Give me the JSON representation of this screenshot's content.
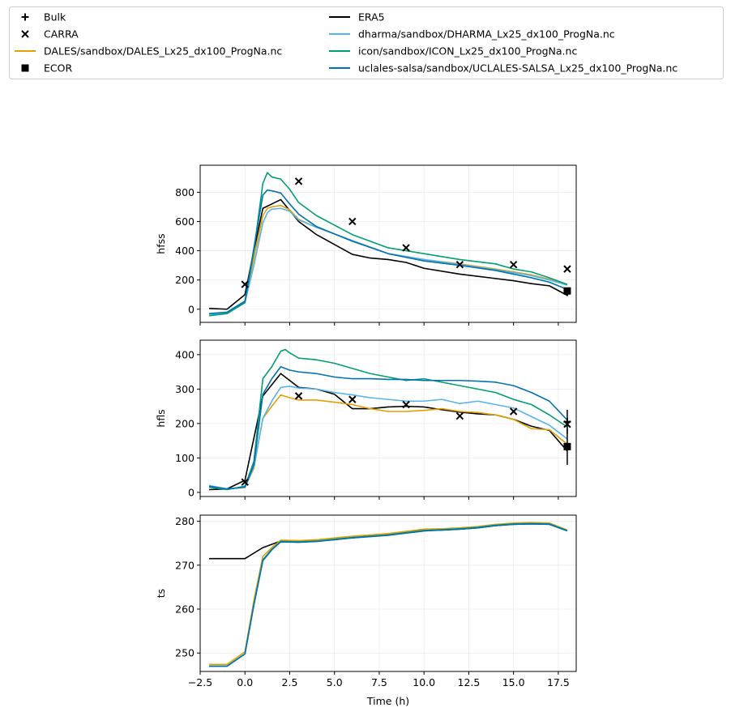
{
  "chart_data": {
    "type": "line",
    "xlabel": "Time (h)",
    "x_ticks": [
      -2.5,
      0.0,
      2.5,
      5.0,
      7.5,
      10.0,
      12.5,
      15.0,
      17.5
    ],
    "x_tick_labels": [
      "−2.5",
      "0.0",
      "2.5",
      "5.0",
      "7.5",
      "10.0",
      "12.5",
      "15.0",
      "17.5"
    ],
    "xlim": [
      -2.5,
      18.5
    ],
    "grid": true,
    "legend_placement": "top, outside axes, two columns",
    "legend": [
      {
        "label": "Bulk",
        "kind": "marker",
        "marker": "plus",
        "color": "#000000"
      },
      {
        "label": "CARRA",
        "kind": "marker",
        "marker": "x",
        "color": "#000000"
      },
      {
        "label": "DALES/sandbox/DALES_Lx25_dx100_ProgNa.nc",
        "kind": "line",
        "color": "#E69F00"
      },
      {
        "label": "ECOR",
        "kind": "marker",
        "marker": "square",
        "color": "#000000"
      },
      {
        "label": "ERA5",
        "kind": "line",
        "color": "#000000"
      },
      {
        "label": "dharma/sandbox/DHARMA_Lx25_dx100_ProgNa.nc",
        "kind": "line",
        "color": "#56B4E9"
      },
      {
        "label": "icon/sandbox/ICON_Lx25_dx100_ProgNa.nc",
        "kind": "line",
        "color": "#009E73"
      },
      {
        "label": "uclales-salsa/sandbox/UCLALES-SALSA_Lx25_dx100_ProgNa.nc",
        "kind": "line",
        "color": "#0072B2"
      }
    ],
    "panels": [
      {
        "ylabel": "hfss",
        "ylim": [
          -90,
          985
        ],
        "y_ticks": [
          0,
          200,
          400,
          600,
          800
        ],
        "y_tick_labels": [
          "0",
          "200",
          "400",
          "600",
          "800"
        ],
        "series": [
          {
            "name": "ERA5",
            "color": "#000000",
            "x": [
              -2,
              -1,
              0,
              0.5,
              1,
              2,
              3,
              4,
              6,
              7,
              8,
              9,
              10,
              12,
              14,
              15,
              16,
              17,
              18
            ],
            "y": [
              5,
              0,
              100,
              400,
              690,
              750,
              600,
              510,
              375,
              350,
              340,
              320,
              280,
              240,
              210,
              195,
              175,
              160,
              95
            ]
          },
          {
            "name": "DALES/sandbox/DALES_Lx25_dx100_ProgNa.nc",
            "color": "#E69F00",
            "x": [
              -2,
              -1,
              0,
              0.5,
              1,
              1.25,
              1.5,
              2,
              2.5,
              3,
              4,
              6,
              8,
              10,
              12,
              14,
              16,
              17,
              18
            ],
            "y": [
              -35,
              -25,
              50,
              350,
              640,
              690,
              700,
              710,
              680,
              615,
              560,
              470,
              380,
              340,
              310,
              275,
              235,
              205,
              165
            ]
          },
          {
            "name": "dharma/sandbox/DHARMA_Lx25_dx100_ProgNa.nc",
            "color": "#56B4E9",
            "x": [
              -2,
              -1,
              0,
              0.5,
              1,
              1.25,
              1.5,
              2,
              2.5,
              3,
              4,
              6,
              8,
              10,
              12,
              14,
              16,
              17,
              18
            ],
            "y": [
              -35,
              -25,
              45,
              300,
              590,
              660,
              685,
              690,
              670,
              610,
              560,
              470,
              380,
              340,
              305,
              270,
              230,
              200,
              165
            ]
          },
          {
            "name": "icon/sandbox/ICON_Lx25_dx100_ProgNa.nc",
            "color": "#009E73",
            "x": [
              -2,
              -1,
              0,
              0.5,
              1,
              1.25,
              1.5,
              2,
              2.5,
              3,
              4,
              6,
              8,
              10,
              12,
              14,
              15,
              16,
              17,
              18
            ],
            "y": [
              -45,
              -30,
              45,
              400,
              860,
              935,
              905,
              890,
              820,
              730,
              640,
              510,
              420,
              380,
              340,
              310,
              275,
              255,
              215,
              170
            ]
          },
          {
            "name": "uclales-salsa/sandbox/UCLALES-SALSA_Lx25_dx100_ProgNa.nc",
            "color": "#0072B2",
            "x": [
              -2,
              -1,
              0,
              0.5,
              1,
              1.25,
              1.5,
              2,
              2.5,
              3,
              4,
              6,
              8,
              10,
              12,
              14,
              16,
              17,
              18
            ],
            "y": [
              -30,
              -20,
              55,
              420,
              780,
              815,
              810,
              795,
              720,
              650,
              565,
              465,
              380,
              330,
              300,
              265,
              215,
              185,
              135
            ]
          }
        ],
        "CARRA": {
          "x": [
            0,
            3,
            6,
            9,
            12,
            15,
            18
          ],
          "y": [
            170,
            875,
            600,
            420,
            305,
            305,
            275
          ]
        },
        "Bulk": {
          "x": 18,
          "y": 115,
          "err_low": 100,
          "err_high": 130
        },
        "ECOR": {
          "x": 18,
          "y": 125
        }
      },
      {
        "ylabel": "hfls",
        "ylim": [
          -12,
          442
        ],
        "y_ticks": [
          0,
          100,
          200,
          300,
          400
        ],
        "y_tick_labels": [
          "0",
          "100",
          "200",
          "300",
          "400"
        ],
        "series": [
          {
            "name": "ERA5",
            "color": "#000000",
            "x": [
              -2,
              -1,
              0,
              1,
              2,
              3,
              4,
              5,
              6,
              7,
              8,
              9,
              10,
              11,
              12,
              13,
              14,
              15,
              16,
              17,
              18
            ],
            "y": [
              8,
              10,
              35,
              280,
              345,
              305,
              300,
              285,
              243,
              243,
              248,
              250,
              248,
              240,
              233,
              228,
              225,
              212,
              192,
              180,
              120
            ]
          },
          {
            "name": "DALES/sandbox/DALES_Lx25_dx100_ProgNa.nc",
            "color": "#E69F00",
            "x": [
              -2,
              -1,
              0,
              0.5,
              1,
              1.5,
              2,
              2.5,
              3,
              4,
              5,
              6,
              7,
              8,
              9,
              10,
              11,
              12,
              13,
              14,
              15,
              16,
              17,
              18
            ],
            "y": [
              18,
              10,
              15,
              70,
              215,
              250,
              283,
              275,
              268,
              268,
              262,
              255,
              243,
              235,
              235,
              238,
              243,
              235,
              232,
              225,
              212,
              185,
              182,
              140
            ]
          },
          {
            "name": "dharma/sandbox/DHARMA_Lx25_dx100_ProgNa.nc",
            "color": "#56B4E9",
            "x": [
              -2,
              -1,
              0,
              0.5,
              1,
              1.5,
              2,
              2.5,
              3,
              4,
              5,
              6,
              7,
              8,
              9,
              10,
              11,
              12,
              13,
              14,
              15,
              16,
              17,
              18
            ],
            "y": [
              20,
              10,
              15,
              75,
              215,
              265,
              305,
              308,
              303,
              300,
              290,
              283,
              275,
              270,
              265,
              265,
              270,
              258,
              265,
              255,
              245,
              220,
              195,
              155
            ]
          },
          {
            "name": "icon/sandbox/ICON_Lx25_dx100_ProgNa.nc",
            "color": "#009E73",
            "x": [
              -2,
              -1,
              0,
              0.5,
              1,
              1.5,
              2,
              2.25,
              2.5,
              3,
              4,
              5,
              6,
              7,
              8,
              9,
              10,
              11,
              12,
              13,
              14,
              15,
              16,
              17,
              18
            ],
            "y": [
              15,
              8,
              18,
              90,
              330,
              365,
              410,
              415,
              405,
              390,
              385,
              375,
              360,
              345,
              335,
              325,
              330,
              320,
              310,
              300,
              290,
              270,
              255,
              225,
              190
            ]
          },
          {
            "name": "uclales-salsa/sandbox/UCLALES-SALSA_Lx25_dx100_ProgNa.nc",
            "color": "#0072B2",
            "x": [
              -2,
              -1,
              0,
              0.5,
              1,
              1.5,
              2,
              2.5,
              3,
              4,
              5,
              6,
              7,
              8,
              9,
              10,
              11,
              12,
              13,
              14,
              15,
              16,
              17,
              18
            ],
            "y": [
              18,
              10,
              15,
              80,
              285,
              330,
              365,
              355,
              350,
              345,
              335,
              330,
              330,
              328,
              328,
              325,
              325,
              325,
              323,
              320,
              310,
              290,
              265,
              210
            ]
          }
        ],
        "CARRA": {
          "x": [
            0,
            3,
            6,
            9,
            12,
            15,
            18
          ],
          "y": [
            30,
            280,
            270,
            255,
            222,
            235,
            198
          ]
        },
        "Bulk": {
          "x": 18,
          "y": 205,
          "err_low": 170,
          "err_high": 240
        },
        "ECOR": {
          "x": 18,
          "y": 133,
          "err_low": 80,
          "err_high": 185
        }
      },
      {
        "ylabel": "ts",
        "ylim": [
          245.8,
          281.4
        ],
        "y_ticks": [
          250,
          260,
          270,
          280
        ],
        "y_tick_labels": [
          "250",
          "260",
          "270",
          "280"
        ],
        "series": [
          {
            "name": "ERA5",
            "color": "#000000",
            "x": [
              -2,
              -1,
              0,
              1,
              2,
              3,
              4,
              5,
              6,
              7,
              8,
              9,
              10,
              11,
              12,
              13,
              14,
              15,
              16,
              17,
              18
            ],
            "y": [
              271.5,
              271.5,
              271.5,
              274,
              275.5,
              275.5,
              275.5,
              275.8,
              276.3,
              276.7,
              277,
              277.5,
              278,
              278,
              278.2,
              278.5,
              279,
              279.3,
              279.4,
              279.3,
              277.9
            ]
          },
          {
            "name": "DALES/sandbox/DALES_Lx25_dx100_ProgNa.nc",
            "color": "#E69F00",
            "x": [
              -2,
              -1,
              0,
              0.5,
              1,
              1.5,
              2,
              3,
              4,
              5,
              6,
              7,
              8,
              9,
              10,
              11,
              12,
              13,
              14,
              15,
              16,
              17,
              18
            ],
            "y": [
              247.4,
              247.4,
              250.3,
              262,
              272,
              274,
              275.7,
              275.6,
              275.8,
              276.2,
              276.6,
              276.9,
              277.2,
              277.7,
              278.2,
              278.3,
              278.5,
              278.8,
              279.3,
              279.6,
              279.7,
              279.6,
              278
            ]
          },
          {
            "name": "dharma/sandbox/DHARMA_Lx25_dx100_ProgNa.nc",
            "color": "#56B4E9",
            "x": [
              -2,
              -1,
              0,
              0.5,
              1,
              1.5,
              2,
              3,
              4,
              5,
              6,
              7,
              8,
              9,
              10,
              11,
              12,
              13,
              14,
              15,
              16,
              17,
              18
            ],
            "y": [
              247,
              247,
              249.8,
              261,
              271.2,
              273.6,
              275.4,
              275.3,
              275.5,
              275.9,
              276.3,
              276.6,
              276.9,
              277.4,
              277.9,
              278.1,
              278.3,
              278.6,
              279.1,
              279.4,
              279.5,
              279.4,
              277.9
            ]
          },
          {
            "name": "icon/sandbox/ICON_Lx25_dx100_ProgNa.nc",
            "color": "#009E73",
            "x": [
              -2,
              -1,
              0,
              0.5,
              1,
              1.5,
              2,
              3,
              4,
              5,
              6,
              7,
              8,
              9,
              10,
              11,
              12,
              13,
              14,
              15,
              16,
              17,
              18
            ],
            "y": [
              247,
              247,
              249.8,
              261,
              271.2,
              273.6,
              275.4,
              275.3,
              275.5,
              275.9,
              276.3,
              276.6,
              276.9,
              277.4,
              277.9,
              278.1,
              278.3,
              278.6,
              279.1,
              279.4,
              279.5,
              279.4,
              277.9
            ]
          },
          {
            "name": "uclales-salsa/sandbox/UCLALES-SALSA_Lx25_dx100_ProgNa.nc",
            "color": "#0072B2",
            "x": [
              -2,
              -1,
              0,
              0.5,
              1,
              1.5,
              2,
              3,
              4,
              5,
              6,
              7,
              8,
              9,
              10,
              11,
              12,
              13,
              14,
              15,
              16,
              17,
              18
            ],
            "y": [
              247,
              247,
              249.8,
              261,
              271,
              273.5,
              275.3,
              275.2,
              275.4,
              275.8,
              276.2,
              276.5,
              276.8,
              277.3,
              277.8,
              278,
              278.2,
              278.5,
              279,
              279.3,
              279.4,
              279.3,
              277.8
            ]
          }
        ]
      }
    ]
  }
}
